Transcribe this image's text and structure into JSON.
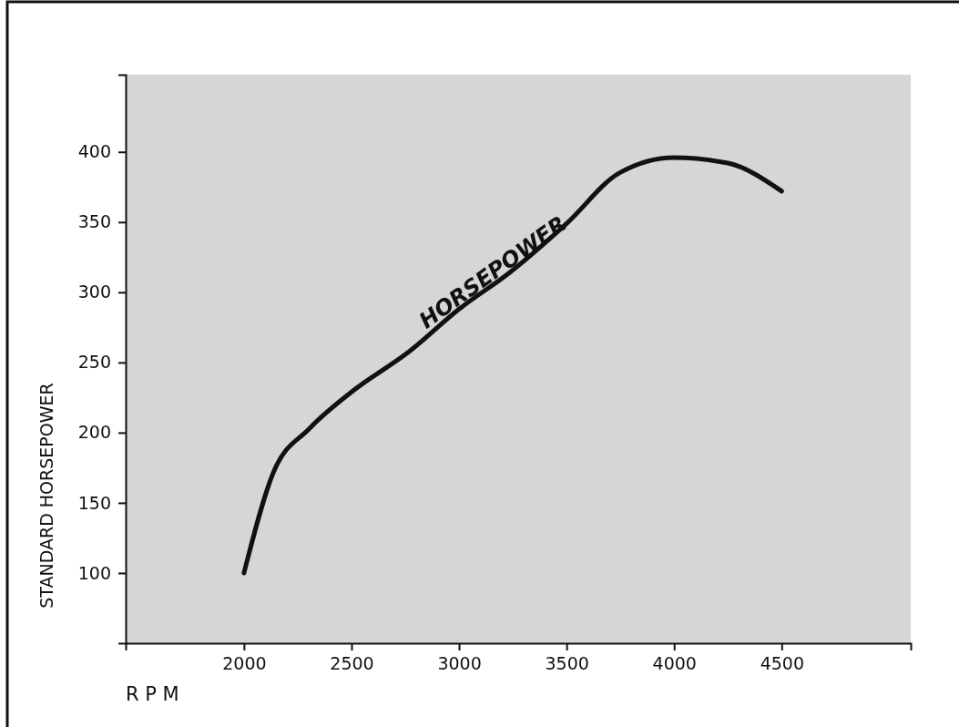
{
  "chart_data": {
    "type": "line",
    "xlabel": "R P M",
    "ylabel": "STANDARD HORSEPOWER",
    "xlim": [
      1450,
      5100
    ],
    "ylim": [
      50,
      455
    ],
    "xticks": [
      2000,
      2500,
      3000,
      3500,
      4000,
      4500
    ],
    "yticks": [
      100,
      150,
      200,
      250,
      300,
      350,
      400
    ],
    "series": [
      {
        "name": "HORSEPOWER",
        "color": "#111111",
        "x": [
          2000,
          2135,
          2305,
          2500,
          2770,
          3000,
          3235,
          3500,
          3745,
          4000,
          4250,
          4500
        ],
        "values": [
          100,
          171,
          203,
          229,
          258,
          288,
          314,
          349,
          385,
          396,
          392,
          372
        ]
      }
    ],
    "grid": false,
    "marker": "none",
    "line_style": "solid"
  }
}
